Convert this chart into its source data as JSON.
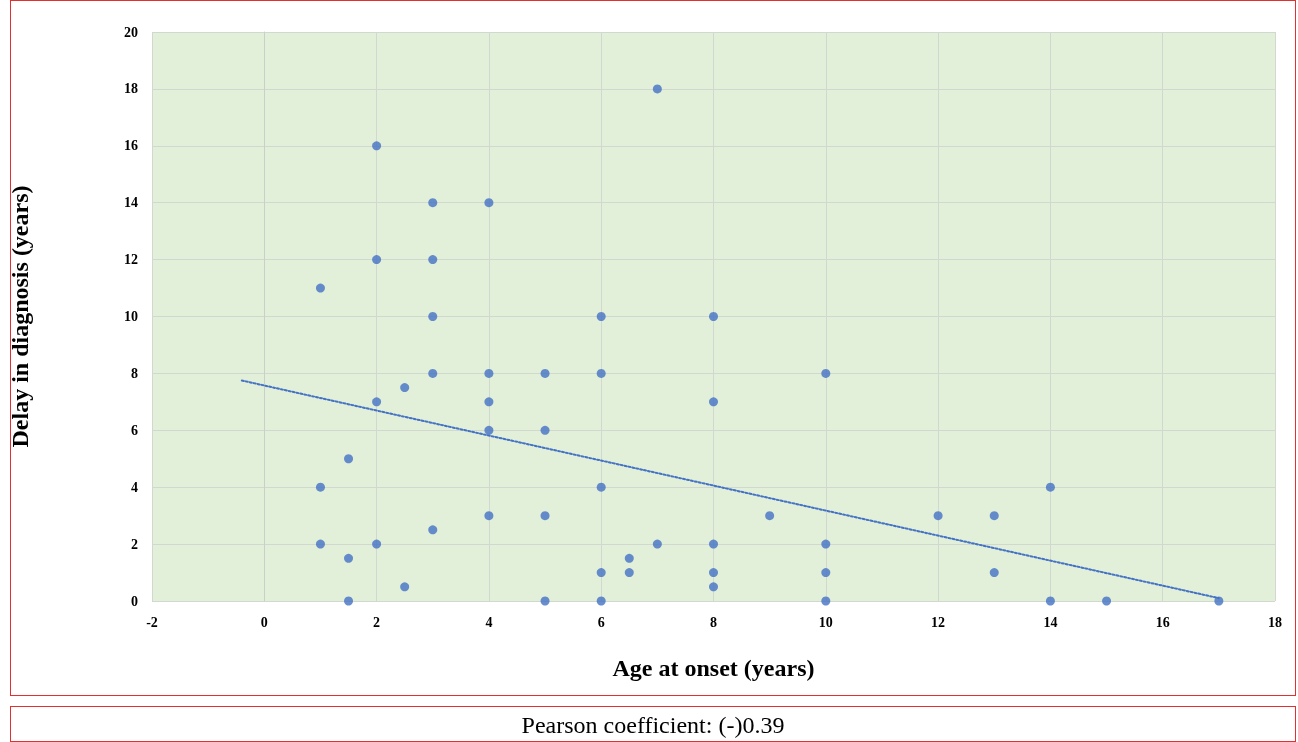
{
  "chart_data": {
    "type": "scatter",
    "xlabel": "Age at onset (years)",
    "ylabel": "Delay in diagnosis (years)",
    "xlim": [
      -2,
      18
    ],
    "xticks": [
      -2,
      0,
      2,
      4,
      6,
      8,
      10,
      12,
      14,
      16,
      18
    ],
    "ylim": [
      0,
      20
    ],
    "yticks": [
      0,
      2,
      4,
      6,
      8,
      10,
      12,
      14,
      16,
      18,
      20
    ],
    "grid": true,
    "marker": "circle",
    "series": [
      {
        "color": "#4472c4",
        "x": [
          1,
          1,
          1,
          1.5,
          1.5,
          1.5,
          2,
          2,
          2,
          2,
          2.5,
          2.5,
          3,
          3,
          3,
          3,
          3,
          4,
          4,
          4,
          4,
          4,
          5,
          5,
          5,
          5,
          6,
          6,
          6,
          6,
          6,
          6.5,
          6.5,
          7,
          7,
          8,
          8,
          8,
          8,
          8,
          9,
          10,
          10,
          10,
          10,
          12,
          13,
          13,
          14,
          14,
          15,
          17
        ],
        "values": [
          11,
          4,
          2,
          5,
          1.5,
          0,
          16,
          12,
          7,
          2,
          7.5,
          0.5,
          14,
          12,
          10,
          8,
          2.5,
          14,
          8,
          7,
          6,
          3,
          8,
          6,
          3,
          0,
          10,
          8,
          4,
          1,
          0,
          1.5,
          1,
          18,
          2,
          10,
          7,
          2,
          1,
          0.5,
          3,
          8,
          2,
          1,
          0,
          3,
          3,
          1,
          4,
          0,
          0,
          0
        ]
      },
      {
        "type": "line",
        "color": "#4472c4",
        "marker": "none",
        "line_style": "dotted",
        "x": [
          -0.4,
          17
        ],
        "values": [
          7.75,
          0.1
        ]
      }
    ],
    "annotations": [
      "Pearson coefficient: (-)0.39"
    ]
  }
}
